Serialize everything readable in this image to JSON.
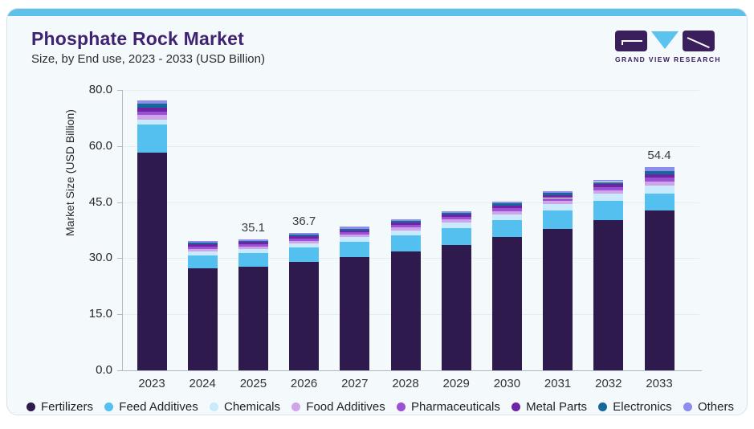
{
  "header": {
    "title": "Phosphate Rock Market",
    "subtitle": "Size, by End use, 2023 - 2033 (USD Billion)"
  },
  "logo": {
    "text": "GRAND VIEW RESEARCH",
    "brand_purple": "#3a1f5c",
    "brand_blue": "#5bc3ee"
  },
  "accent": {
    "top_strip": "#5ec1ea",
    "card_bg": "#f4f9fc",
    "card_border": "#d7e2ea"
  },
  "chart_data": {
    "type": "bar",
    "stacked": true,
    "title": "Phosphate Rock Market Size, by End use, 2023 - 2033 (USD Billion)",
    "xlabel": "",
    "ylabel": "Market Size (USD Billion)",
    "grid": "subtle-horizontal",
    "legend_position": "bottom",
    "y_ticks": [
      0,
      15,
      30,
      45,
      60,
      80
    ],
    "y_tick_labels": [
      "0.0",
      "15.0",
      "30.0",
      "45.0",
      "60.0",
      "80.0"
    ],
    "axis_note": "ticks are evenly spaced in pixels although top interval is 20 units",
    "categories": [
      "2023",
      "2024",
      "2025",
      "2026",
      "2027",
      "2028",
      "2029",
      "2030",
      "2031",
      "2032",
      "2033"
    ],
    "series": [
      {
        "name": "Fertilizers",
        "color": "#2e1a4d",
        "values": [
          58.3,
          27.2,
          27.7,
          29.0,
          30.3,
          31.9,
          33.6,
          35.6,
          37.8,
          40.2,
          42.8
        ]
      },
      {
        "name": "Feed Additives",
        "color": "#54c0ef",
        "values": [
          9.5,
          3.6,
          3.7,
          3.8,
          4.0,
          4.2,
          4.4,
          4.6,
          4.9,
          5.2,
          4.5
        ]
      },
      {
        "name": "Chemicals",
        "color": "#c9eafc",
        "values": [
          1.5,
          1.1,
          1.1,
          1.2,
          1.3,
          1.4,
          1.5,
          1.6,
          1.7,
          1.8,
          2.1
        ]
      },
      {
        "name": "Food Additives",
        "color": "#cfa4ea",
        "values": [
          1.7,
          0.6,
          0.6,
          0.7,
          0.7,
          0.7,
          0.8,
          0.8,
          0.9,
          1.0,
          1.1
        ]
      },
      {
        "name": "Pharmaceuticals",
        "color": "#9b51d4",
        "values": [
          1.4,
          0.6,
          0.6,
          0.6,
          0.6,
          0.7,
          0.7,
          0.8,
          0.8,
          0.9,
          1.0
        ]
      },
      {
        "name": "Metal Parts",
        "color": "#6f24a5",
        "values": [
          1.4,
          0.6,
          0.6,
          0.6,
          0.6,
          0.6,
          0.7,
          0.7,
          0.8,
          0.8,
          1.0
        ]
      },
      {
        "name": "Electronics",
        "color": "#16689b",
        "values": [
          1.2,
          0.4,
          0.4,
          0.4,
          0.4,
          0.4,
          0.4,
          0.5,
          0.5,
          0.5,
          0.9
        ]
      },
      {
        "name": "Others",
        "color": "#8e8cec",
        "values": [
          1.2,
          0.5,
          0.4,
          0.4,
          0.5,
          0.5,
          0.5,
          0.5,
          0.5,
          0.6,
          1.0
        ]
      }
    ],
    "bar_value_labels": {
      "2025": "35.1",
      "2026": "36.7",
      "2033": "54.4"
    }
  }
}
